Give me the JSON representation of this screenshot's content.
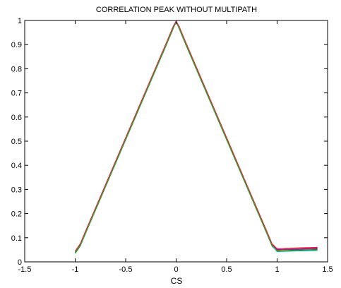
{
  "chart_data": {
    "type": "line",
    "title": "CORRELATION PEAK WITHOUT MULTIPATH",
    "xlabel": "CS",
    "ylabel": "",
    "xlim": [
      -1.5,
      1.5
    ],
    "ylim": [
      0,
      1
    ],
    "xticks": [
      "-1.5",
      "-1",
      "-0.5",
      "0",
      "0.5",
      "1",
      "1.5"
    ],
    "yticks": [
      "0",
      "0.1",
      "0.2",
      "0.3",
      "0.4",
      "0.5",
      "0.6",
      "0.7",
      "0.8",
      "0.9",
      "1"
    ],
    "grid": false,
    "legend": "none",
    "series": [
      {
        "color": "#0000ff",
        "x": [
          -1.0,
          -0.95,
          -0.9,
          -0.5,
          -0.1,
          -0.03,
          0,
          0.03,
          0.1,
          0.5,
          0.9,
          0.95,
          1.0,
          1.05,
          1.2,
          1.4
        ],
        "y": [
          0.04,
          0.07,
          0.12,
          0.51,
          0.9,
          0.97,
          0.99,
          0.97,
          0.9,
          0.51,
          0.12,
          0.07,
          0.05,
          0.05,
          0.052,
          0.055
        ]
      },
      {
        "color": "#008000",
        "x": [
          -1.0,
          -0.95,
          -0.9,
          -0.5,
          -0.1,
          -0.03,
          0,
          0.03,
          0.1,
          0.5,
          0.9,
          0.95,
          1.0,
          1.05,
          1.2,
          1.4
        ],
        "y": [
          0.035,
          0.065,
          0.115,
          0.505,
          0.895,
          0.965,
          0.995,
          0.965,
          0.895,
          0.505,
          0.115,
          0.065,
          0.045,
          0.045,
          0.048,
          0.05
        ]
      },
      {
        "color": "#ff0000",
        "x": [
          -1.0,
          -0.95,
          -0.9,
          -0.5,
          -0.1,
          -0.03,
          0,
          0.03,
          0.1,
          0.5,
          0.9,
          0.95,
          1.0,
          1.05,
          1.2,
          1.4
        ],
        "y": [
          0.045,
          0.075,
          0.125,
          0.515,
          0.905,
          0.975,
          0.998,
          0.975,
          0.905,
          0.515,
          0.125,
          0.075,
          0.055,
          0.055,
          0.058,
          0.06
        ]
      },
      {
        "color": "#00bfbf",
        "x": [
          -1.0,
          -0.95,
          -0.9,
          -0.5,
          -0.1,
          -0.03,
          0,
          0.03,
          0.1,
          0.5,
          0.9,
          0.95,
          1.0,
          1.05,
          1.2,
          1.4
        ],
        "y": [
          0.038,
          0.068,
          0.118,
          0.508,
          0.898,
          0.968,
          0.992,
          0.968,
          0.898,
          0.508,
          0.118,
          0.068,
          0.042,
          0.043,
          0.045,
          0.047
        ]
      },
      {
        "color": "#bf00bf",
        "x": [
          -1.0,
          -0.95,
          -0.9,
          -0.5,
          -0.1,
          -0.03,
          0,
          0.03,
          0.1,
          0.5,
          0.9,
          0.95,
          1.0,
          1.05,
          1.2,
          1.4
        ],
        "y": [
          0.042,
          0.072,
          0.122,
          0.512,
          0.902,
          0.972,
          0.996,
          0.972,
          0.902,
          0.512,
          0.122,
          0.072,
          0.052,
          0.052,
          0.054,
          0.057
        ]
      },
      {
        "color": "#808000",
        "x": [
          -1.0,
          -0.95,
          -0.9,
          -0.5,
          -0.1,
          -0.03,
          0,
          0.03,
          0.1,
          0.5,
          0.9,
          0.95,
          1.0,
          1.05,
          1.2,
          1.4
        ],
        "y": [
          0.04,
          0.07,
          0.12,
          0.51,
          0.9,
          0.97,
          0.994,
          0.97,
          0.9,
          0.51,
          0.12,
          0.07,
          0.048,
          0.049,
          0.05,
          0.053
        ]
      }
    ]
  }
}
